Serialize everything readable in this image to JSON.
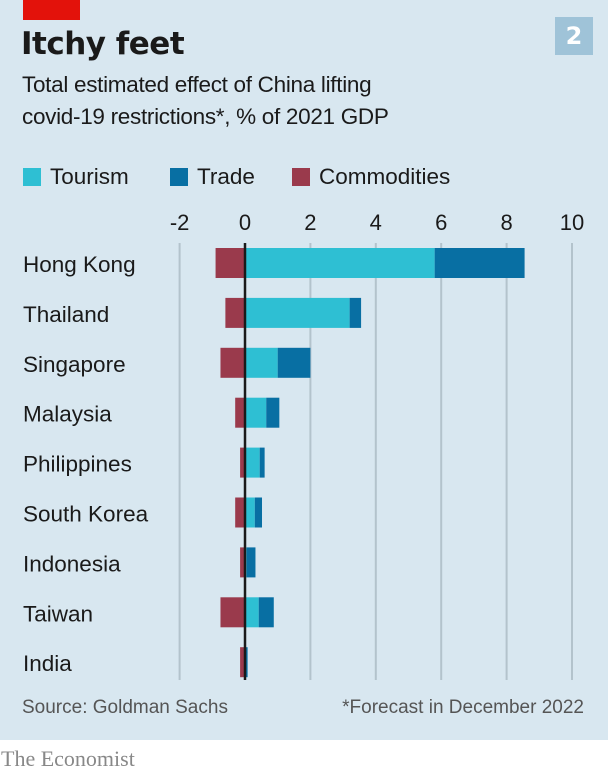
{
  "header": {
    "badge": "2",
    "title": "Itchy feet",
    "subtitle_line1": "Total estimated effect of China lifting",
    "subtitle_line2": "covid-19 restrictions*, % of 2021 GDP"
  },
  "legend": [
    {
      "label": "Tourism",
      "color": "#2ebfd3"
    },
    {
      "label": "Trade",
      "color": "#086fa3"
    },
    {
      "label": "Commodities",
      "color": "#9a3a4c"
    }
  ],
  "footer": {
    "source": "Source: Goldman Sachs",
    "note": "*Forecast in December 2022",
    "brand": "The Economist"
  },
  "chart_data": {
    "type": "bar",
    "orientation": "horizontal",
    "stacked": true,
    "title": "Itchy feet",
    "subtitle": "Total estimated effect of China lifting covid-19 restrictions*, % of 2021 GDP",
    "xlabel": "",
    "ylabel": "",
    "xlim": [
      -2,
      10
    ],
    "xticks": [
      -2,
      0,
      2,
      4,
      6,
      8,
      10
    ],
    "grid": true,
    "legend_position": "top",
    "categories": [
      "Hong Kong",
      "Thailand",
      "Singapore",
      "Malaysia",
      "Philippines",
      "South Korea",
      "Indonesia",
      "Taiwan",
      "India"
    ],
    "series": [
      {
        "name": "Tourism",
        "color": "#2ebfd3",
        "values": [
          5.8,
          3.2,
          1.0,
          0.65,
          0.45,
          0.3,
          0.05,
          0.42,
          0.0
        ]
      },
      {
        "name": "Trade",
        "color": "#086fa3",
        "values": [
          2.75,
          0.35,
          1.0,
          0.4,
          0.15,
          0.22,
          0.27,
          0.46,
          0.08
        ]
      },
      {
        "name": "Commodities",
        "color": "#9a3a4c",
        "values": [
          -0.9,
          -0.6,
          -0.75,
          -0.3,
          -0.15,
          -0.3,
          -0.15,
          -0.75,
          -0.15
        ]
      }
    ]
  }
}
